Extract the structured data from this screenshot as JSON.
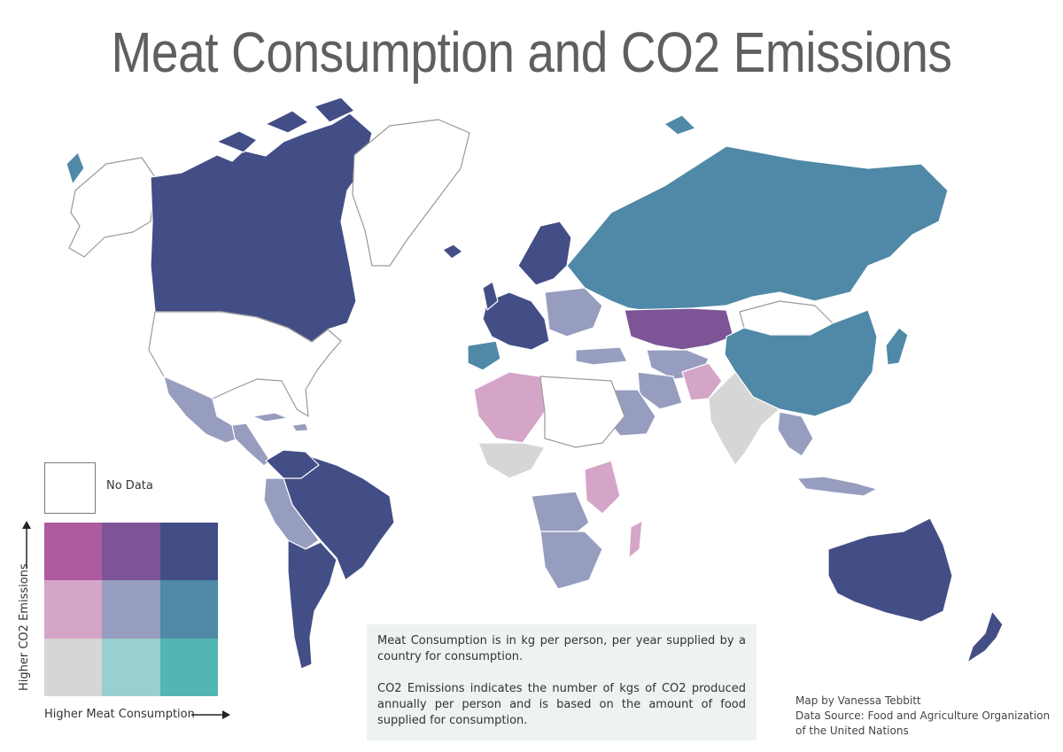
{
  "title": "Meat Consumption and CO2 Emissions",
  "legend": {
    "no_data_label": "No Data",
    "y_axis_label": "Higher CO2 Emissions",
    "x_axis_label": "Higher Meat Consumption",
    "colors": {
      "high_co2_low_meat": "#ad5b9f",
      "high_co2_mid_meat": "#7d5596",
      "high_co2_high_meat": "#434e86",
      "mid_co2_low_meat": "#d4a5c7",
      "mid_co2_mid_meat": "#979dbf",
      "mid_co2_high_meat": "#4f89a7",
      "low_co2_low_meat": "#d6d6d6",
      "low_co2_mid_meat": "#99cfcf",
      "low_co2_high_meat": "#52b6b4",
      "no_data": "#ffffff"
    }
  },
  "notes": {
    "consumption": "Meat Consumption is in kg per person, per year supplied by a country for consumption.",
    "emissions": "CO2 Emissions indicates the number of kgs of CO2 produced annually per person and is based on the amount of food supplied for consumption."
  },
  "credit": {
    "author": "Map by Vanessa Tebbitt",
    "source": "Data Source: Food and Agriculture Organization of the United Nations"
  }
}
